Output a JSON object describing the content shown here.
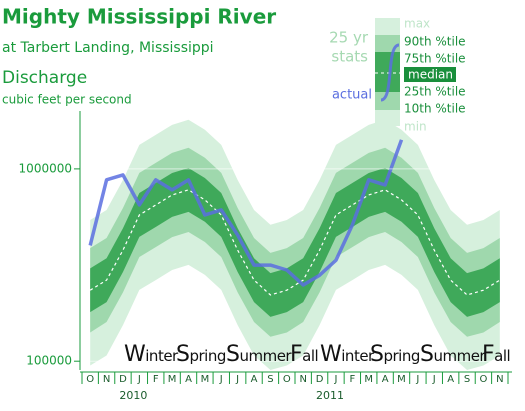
{
  "chart_data": {
    "type": "fan",
    "title": "Mighty Mississippi River",
    "subtitle": "at Tarbert Landing, Mississippi",
    "quantity": "Discharge",
    "unit": "cubic feet per second",
    "legend_title": [
      "25 yr",
      "stats"
    ],
    "categories": [
      "O",
      "N",
      "D",
      "J",
      "F",
      "M",
      "A",
      "M",
      "J",
      "J",
      "A",
      "S",
      "O",
      "N",
      "D",
      "J",
      "F",
      "M",
      "A",
      "M",
      "J",
      "J",
      "A",
      "S",
      "O",
      "N"
    ],
    "year_labels": [
      "2010",
      "2011"
    ],
    "season_labels": [
      "Winter",
      "Spring",
      "Summer",
      "Fall",
      "Winter",
      "Spring",
      "Summer",
      "Fall"
    ],
    "log_scale": true,
    "ylim": [
      90000,
      2000000
    ],
    "yticks": [
      100000,
      1000000
    ],
    "series": [
      {
        "name": "max",
        "color": "#d6f0dd",
        "values": [
          542000,
          611000,
          875000,
          1334000,
          1503000,
          1695000,
          1802000,
          1598000,
          1334000,
          875000,
          611000,
          512000,
          542000,
          611000,
          875000,
          1334000,
          1503000,
          1695000,
          1802000,
          1598000,
          1334000,
          875000,
          611000,
          512000,
          542000,
          611000
        ]
      },
      {
        "name": "90th %tile",
        "color": "#9fd8ad",
        "values": [
          387000,
          437000,
          626000,
          953000,
          1074000,
          1211000,
          1288000,
          1142000,
          953000,
          626000,
          437000,
          366000,
          387000,
          437000,
          626000,
          953000,
          1074000,
          1211000,
          1288000,
          1142000,
          953000,
          626000,
          437000,
          366000,
          387000,
          437000
        ]
      },
      {
        "name": "75th %tile",
        "color": "#3fa95a",
        "values": [
          304000,
          343000,
          491000,
          749000,
          844000,
          952000,
          1011000,
          897000,
          749000,
          491000,
          343000,
          287000,
          304000,
          343000,
          491000,
          749000,
          844000,
          952000,
          1011000,
          897000,
          749000,
          491000,
          343000,
          287000,
          304000,
          343000
        ]
      },
      {
        "name": "median",
        "color": "#ffffff",
        "values": [
          234000,
          264000,
          378000,
          576000,
          649000,
          732000,
          778000,
          690000,
          576000,
          378000,
          264000,
          221000,
          234000,
          264000,
          378000,
          576000,
          649000,
          732000,
          778000,
          690000,
          576000,
          378000,
          264000,
          221000,
          234000,
          264000
        ]
      },
      {
        "name": "25th %tile",
        "color": "#3fa95a",
        "values": [
          180000,
          203000,
          291000,
          443000,
          499000,
          563000,
          598000,
          531000,
          443000,
          291000,
          203000,
          170000,
          180000,
          203000,
          291000,
          443000,
          499000,
          563000,
          598000,
          531000,
          443000,
          291000,
          203000,
          170000,
          180000,
          203000
        ]
      },
      {
        "name": "10th %tile",
        "color": "#9fd8ad",
        "values": [
          141000,
          160000,
          228000,
          348000,
          392000,
          442000,
          470000,
          417000,
          348000,
          228000,
          160000,
          134000,
          141000,
          160000,
          228000,
          348000,
          392000,
          442000,
          470000,
          417000,
          348000,
          228000,
          160000,
          134000,
          141000,
          160000
        ]
      },
      {
        "name": "min",
        "color": "#d6f0dd",
        "values": [
          95000,
          107000,
          154000,
          235000,
          264000,
          298000,
          317000,
          281000,
          235000,
          154000,
          107000,
          90000,
          95000,
          107000,
          154000,
          235000,
          264000,
          298000,
          317000,
          281000,
          235000,
          154000,
          107000,
          90000,
          95000,
          107000
        ]
      },
      {
        "name": "actual",
        "color": "#5b6fe0",
        "values": [
          400000,
          877000,
          930000,
          650000,
          877000,
          778000,
          877000,
          576000,
          612000,
          453000,
          316000,
          316000,
          298000,
          249000,
          280000,
          335000,
          511000,
          877000,
          825000,
          1416000,
          null,
          null,
          null,
          null,
          null,
          null
        ]
      }
    ]
  }
}
